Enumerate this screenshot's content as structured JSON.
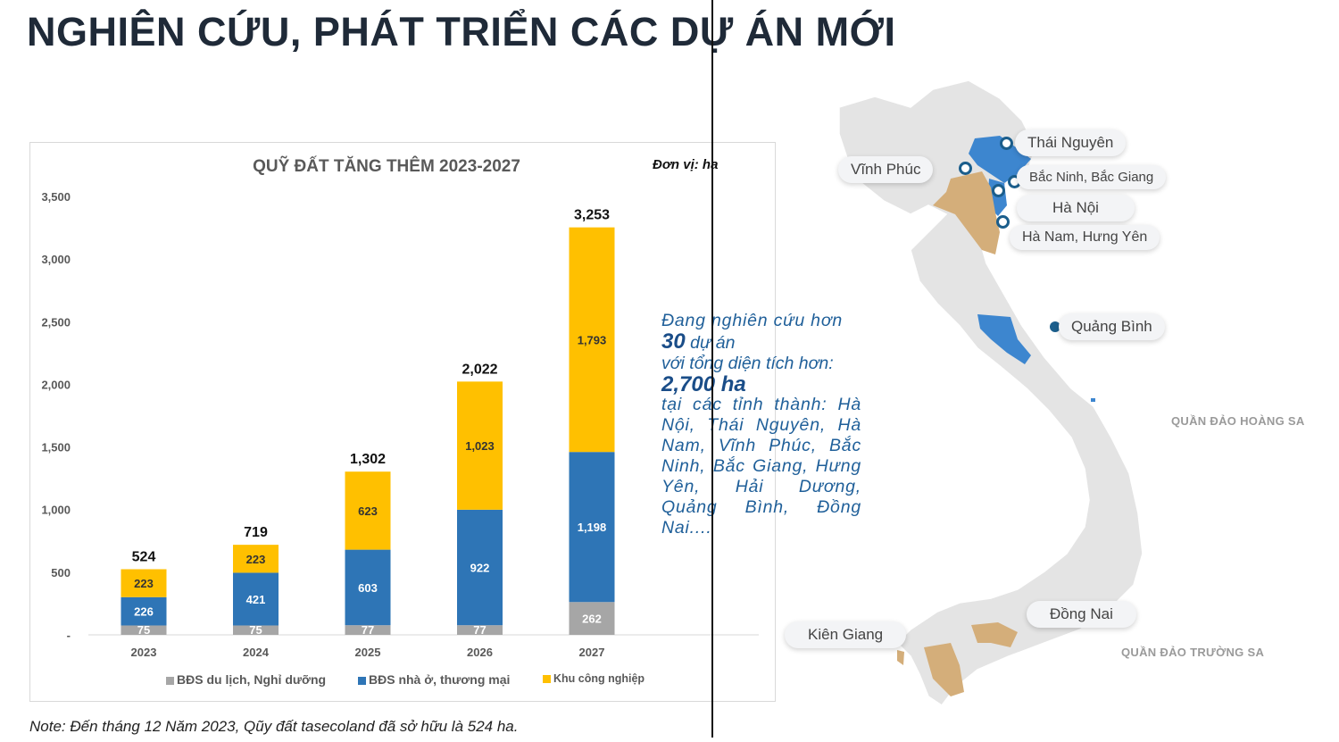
{
  "page": {
    "title": "NGHIÊN CỨU, PHÁT TRIỂN CÁC DỰ ÁN MỚI",
    "note": "Note: Đến tháng 12 Năm 2023, Qũy đất tasecoland đã sở hữu là 524 ha."
  },
  "research": {
    "line1": "Đang nghiên cứu hơn",
    "count": "30",
    "count_suffix": " dự án",
    "line3": "với tổng diện tích hơn:",
    "area": "2,700 ha",
    "provinces": "tại các tỉnh thành: Hà Nội, Thái Nguyên, Hà Nam, Vĩnh Phúc, Bắc Ninh, Bắc Giang, Hưng Yên, Hải Dương, Quảng Bình, Đồng Nai...."
  },
  "map": {
    "labels": {
      "thai_nguyen": "Thái Nguyên",
      "vinh_phuc": "Vĩnh Phúc",
      "bac_ninh": "Bắc Ninh, Bắc Giang",
      "ha_noi": "Hà Nội",
      "ha_nam": "Hà Nam, Hưng Yên",
      "quang_binh": "Quảng Bình",
      "dong_nai": "Đồng Nai",
      "kien_giang": "Kiên Giang",
      "hoang_sa": "QUẦN ĐẢO HOÀNG SA",
      "truong_sa": "QUẦN ĐẢO TRƯỜNG SA"
    },
    "colors": {
      "land": "#e4e4e4",
      "highlight_blue": "#3d86cf",
      "highlight_tan": "#d4ae7a",
      "marker": "#1b5e8c"
    }
  },
  "chart_data": {
    "type": "bar",
    "stacked": true,
    "title": "QUỸ ĐẤT TĂNG THÊM 2023-2027",
    "unit": "Đơn vị: ha",
    "categories": [
      "2023",
      "2024",
      "2025",
      "2026",
      "2027"
    ],
    "y_ticks": [
      "-",
      "500",
      "1,000",
      "1,500",
      "2,000",
      "2,500",
      "3,000",
      "3,500"
    ],
    "ylim": [
      0,
      3500
    ],
    "grid": false,
    "legend_position": "bottom",
    "series": [
      {
        "name": "BĐS du lịch, Nghỉ dưỡng",
        "color": "#a6a6a6",
        "values": [
          75,
          75,
          77,
          77,
          262
        ],
        "labels": [
          "75",
          "75",
          "77",
          "77",
          "262"
        ]
      },
      {
        "name": "BĐS nhà ở, thương mại",
        "color": "#2e75b6",
        "values": [
          226,
          421,
          603,
          922,
          1198
        ],
        "labels": [
          "226",
          "421",
          "603",
          "922",
          "1,198"
        ]
      },
      {
        "name": "Khu công nghiệp",
        "color": "#ffc000",
        "values": [
          223,
          223,
          623,
          1023,
          1793
        ],
        "labels": [
          "223",
          "223",
          "623",
          "1,023",
          "1,793"
        ]
      }
    ],
    "totals": [
      "524",
      "719",
      "1,302",
      "2,022",
      "3,253"
    ]
  }
}
